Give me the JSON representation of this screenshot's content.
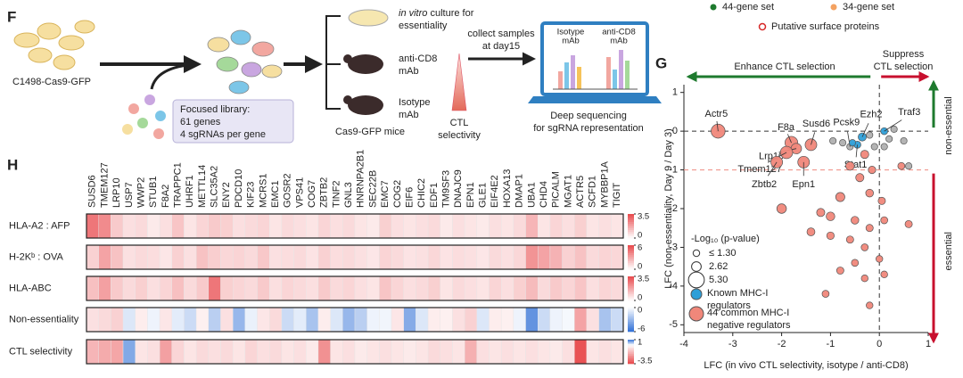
{
  "panel_f": {
    "label": "F",
    "cell_line": "C1498-Cas9-GFP",
    "library": [
      "Focused library:",
      "61 genes",
      "4 sgRNAs per gene"
    ],
    "invitro": [
      "in vitro",
      " culture for",
      "essentiality"
    ],
    "anti_cd8": [
      "anti-CD8",
      "mAb"
    ],
    "isotype": [
      "Isotype",
      "mAb"
    ],
    "mice": "Cas9-GFP mice",
    "ctl": [
      "CTL",
      "selectivity"
    ],
    "collect": [
      "collect samples",
      "at day15"
    ],
    "screen_isotype": [
      "Isotype",
      "mAb"
    ],
    "screen_anticd8": [
      "anti-CD8",
      "mAb"
    ],
    "sequencing": [
      "Deep sequencing",
      "for sgRNA representation"
    ]
  },
  "legend_top": {
    "items": [
      {
        "name": "44-gene set",
        "color": "#1e7a2e"
      },
      {
        "name": "34-gene set",
        "color": "#f4a261"
      },
      {
        "name": "Putative surface proteins",
        "color": "#d62828"
      }
    ]
  },
  "chart_data": [
    {
      "type": "heatmap",
      "label": "H",
      "categories": [
        "SUSD6",
        "TMEM127",
        "LRP10",
        "USP7",
        "WWP2",
        "STUB1",
        "F8A2",
        "TRAPPC1",
        "UHRF1",
        "METTL14",
        "SLC35A2",
        "ENY2",
        "PDCD10",
        "KIF23",
        "MCRS1",
        "EMC1",
        "GOSR2",
        "VPS41",
        "COG7",
        "ZBTB2",
        "TINF2",
        "GNL3",
        "HNRNPA2B1",
        "SEC22B",
        "EMC7",
        "COG2",
        "EIF6",
        "CHIC2",
        "EDF1",
        "TM9SF3",
        "DNAJC9",
        "EPN1",
        "GLE1",
        "EIF4E2",
        "HOXA13",
        "DMAP1",
        "UBA1",
        "CHD4",
        "PICALM",
        "MGAT1",
        "ACTR5",
        "SCFD1",
        "MYBBP1A",
        "TIGIT"
      ],
      "series": [
        {
          "name": "HLA-A2 : AFP",
          "pos_color": "#e8474a",
          "neg_color": "#2f6fd6",
          "ticks": [
            3.5,
            0
          ],
          "values": [
            2.6,
            2.2,
            1.0,
            0.6,
            0.7,
            0.4,
            0.6,
            1.1,
            0.5,
            0.8,
            1.0,
            0.9,
            0.6,
            0.7,
            0.8,
            0.5,
            0.7,
            0.6,
            0.5,
            0.8,
            0.6,
            0.7,
            0.5,
            0.4,
            0.9,
            0.6,
            0.5,
            0.6,
            0.7,
            0.4,
            0.6,
            0.5,
            0.4,
            0.6,
            0.5,
            0.7,
            1.4,
            0.5,
            0.8,
            0.6,
            0.9,
            0.5,
            0.6,
            0.5
          ]
        },
        {
          "name": "H-2Kᵇ : OVA",
          "pos_color": "#e8474a",
          "neg_color": "#2f6fd6",
          "ticks": [
            6,
            0
          ],
          "values": [
            1.5,
            3.0,
            2.0,
            1.0,
            1.2,
            1.1,
            0.8,
            1.5,
            1.0,
            2.0,
            1.6,
            1.3,
            1.4,
            1.2,
            1.8,
            1.0,
            1.1,
            1.2,
            0.9,
            1.5,
            1.1,
            1.2,
            1.0,
            0.8,
            1.4,
            1.2,
            0.9,
            1.0,
            1.3,
            0.9,
            1.1,
            1.0,
            0.8,
            1.2,
            1.0,
            1.3,
            3.5,
            3.0,
            2.5,
            1.5,
            2.0,
            1.2,
            1.4,
            1.3
          ]
        },
        {
          "name": "HLA-ABC",
          "pos_color": "#e8474a",
          "neg_color": "#2f6fd6",
          "ticks": [
            3.5,
            0
          ],
          "values": [
            1.2,
            1.8,
            1.0,
            0.7,
            0.9,
            0.6,
            0.8,
            1.2,
            0.7,
            1.0,
            2.6,
            0.9,
            0.8,
            0.7,
            1.0,
            0.6,
            0.8,
            0.7,
            0.6,
            1.0,
            0.7,
            0.8,
            0.6,
            0.5,
            1.1,
            0.8,
            0.6,
            0.7,
            0.9,
            0.5,
            0.7,
            0.6,
            0.5,
            0.8,
            0.6,
            0.9,
            1.3,
            0.7,
            1.0,
            0.8,
            1.1,
            0.6,
            0.8,
            0.7
          ]
        },
        {
          "name": "Non-essentiality",
          "pos_color": "#e8474a",
          "neg_color": "#2f6fd6",
          "ticks": [
            0,
            -6
          ],
          "values": [
            1.0,
            1.2,
            1.5,
            -1.0,
            0.6,
            -0.5,
            0.8,
            -0.8,
            -1.5,
            0.5,
            -2.0,
            1.0,
            -3.0,
            -0.6,
            0.8,
            1.2,
            -1.5,
            -0.8,
            -2.5,
            0.6,
            -1.0,
            -3.0,
            -2.0,
            -0.5,
            -0.4,
            0.8,
            -3.5,
            -1.0,
            0.6,
            0.5,
            1.0,
            1.5,
            -1.0,
            0.6,
            0.5,
            -0.5,
            -4.5,
            -1.5,
            -0.5,
            -0.3,
            3.0,
            1.0,
            -2.5,
            -1.5
          ]
        },
        {
          "name": "CTL selectivity",
          "pos_color": "#2f6fd6",
          "neg_color": "#e8474a",
          "ticks": [
            1,
            -3.5
          ],
          "values": [
            -1.4,
            -1.6,
            -1.7,
            0.6,
            -0.5,
            -0.6,
            -1.8,
            -0.8,
            -0.5,
            -0.7,
            -0.6,
            -0.7,
            -0.5,
            -0.8,
            -0.6,
            -0.7,
            -0.5,
            -0.6,
            -0.4,
            -2.1,
            -0.5,
            -0.6,
            -0.4,
            -0.5,
            -0.6,
            -0.5,
            -0.4,
            -0.5,
            -0.7,
            -0.6,
            -0.5,
            -1.5,
            -0.6,
            -0.5,
            -0.6,
            -0.5,
            -0.6,
            -0.5,
            -0.4,
            -0.6,
            -3.3,
            -0.5,
            -0.6,
            -0.5
          ]
        }
      ]
    },
    {
      "type": "scatter",
      "label": "G",
      "xlabel": "LFC (in vivo CTL selectivity, isotype / anti-CD8)",
      "ylabel": "LFC (non-essentiality, Day 9 / Day 3)",
      "xlim": [
        -4,
        1
      ],
      "xticks": [
        -4,
        -3,
        -2,
        -1,
        0,
        1
      ],
      "ylim": [
        -5.2,
        1.2
      ],
      "yticks": [
        1,
        0,
        -1,
        -2,
        -3,
        -4,
        -5
      ],
      "hline_black": 0,
      "hline_red": -1,
      "vline": 0,
      "arrows": {
        "left": "Enhance CTL selection",
        "right": [
          "Suppress",
          "CTL selection"
        ],
        "up": "non-essential",
        "down": "essential"
      },
      "size_title": "-Log₁₀ (p-value)",
      "size_ticks": [
        {
          "value": 1.3,
          "label": "≤  1.30"
        },
        2.62,
        {
          "value": 5.3,
          "label": "5.30"
        }
      ],
      "series": [
        {
          "color": "#b0b0b0",
          "x": [
            -0.6,
            -0.95,
            -0.75,
            -0.2,
            0.2,
            0.5,
            0.3,
            -0.1,
            0.1,
            0.6
          ],
          "values": [
            -0.4,
            -0.25,
            -0.3,
            -0.1,
            -0.2,
            -0.25,
            0.05,
            -0.4,
            -0.4,
            -0.9
          ],
          "sizes": [
            1.3,
            1.3,
            1.3,
            1.3,
            1.3,
            1.3,
            1.3,
            1.3,
            1.3,
            1.3
          ],
          "labels": [
            "Pcsk9",
            null,
            null,
            null,
            null,
            null,
            null,
            null,
            null,
            null
          ]
        },
        {
          "name": "Known MHC-I regulators",
          "color": "#2e9fd8",
          "x": [
            -0.35,
            -0.45,
            0.1,
            -0.55
          ],
          "values": [
            -0.15,
            -0.35,
            0.0,
            -0.3
          ],
          "sizes": [
            2.0,
            1.5,
            1.5,
            1.3
          ],
          "labels": [
            "Ezh2",
            "Stat1",
            "Traf3",
            null
          ]
        },
        {
          "name": "44 common MHC-I negative regulators",
          "color": "#f0877a",
          "x": [
            -3.3,
            -1.8,
            -1.4,
            -1.7,
            -1.9,
            -2.1,
            -1.55,
            -0.3,
            -0.6,
            -0.2,
            0.05,
            -0.8,
            -1.2,
            -2.0,
            -1.0,
            -0.5,
            -0.2,
            0.1,
            -1.4,
            -1.0,
            -0.6,
            -0.3,
            0.0,
            -0.5,
            -0.8,
            -0.3,
            -1.1,
            -0.2,
            0.1,
            0.6,
            0.45,
            -0.4,
            -0.15
          ],
          "values": [
            0.0,
            -0.3,
            -0.35,
            -0.45,
            -0.55,
            -0.8,
            -0.8,
            -0.6,
            -0.9,
            -1.6,
            -1.8,
            -1.7,
            -2.1,
            -2.0,
            -2.2,
            -2.3,
            -2.5,
            -2.3,
            -2.6,
            -2.7,
            -2.8,
            -3.0,
            -3.3,
            -3.4,
            -3.6,
            -3.8,
            -4.2,
            -4.5,
            -3.7,
            -2.4,
            -0.9,
            -1.2,
            -1.0
          ],
          "sizes": [
            4.5,
            4.0,
            3.5,
            3.0,
            3.8,
            3.5,
            3.5,
            2.0,
            2.2,
            1.8,
            1.6,
            2.4,
            2.0,
            2.6,
            2.2,
            1.8,
            1.6,
            1.5,
            1.9,
            1.7,
            1.6,
            1.5,
            1.4,
            1.5,
            1.6,
            1.4,
            1.5,
            1.4,
            1.4,
            1.6,
            1.5,
            2.0,
            1.7
          ],
          "labels": [
            "Actr5",
            "F8a",
            "Susd6",
            "Lrp10",
            "Tmem127",
            "Zbtb2",
            "Epn1",
            null,
            null,
            null,
            null,
            null,
            null,
            null,
            null,
            null,
            null,
            null,
            null,
            null,
            null,
            null,
            null,
            null,
            null,
            null,
            null,
            null,
            null,
            null,
            null,
            null,
            null
          ]
        }
      ]
    }
  ]
}
